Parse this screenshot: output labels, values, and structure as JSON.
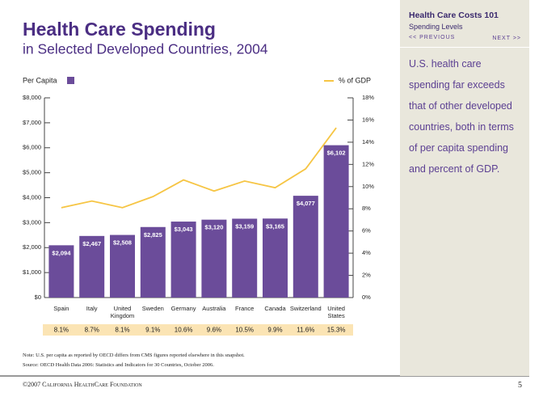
{
  "chart_data": {
    "type": "bar-line",
    "title": "Health Care Spending",
    "subtitle": "in Selected Developed Countries, 2004",
    "categories": [
      "Spain",
      "Italy",
      "United Kingdom",
      "Sweden",
      "Germany",
      "Australia",
      "France",
      "Canada",
      "Switzerland",
      "United States"
    ],
    "series": [
      {
        "name": "Per Capita",
        "color": "#6b4c9a",
        "type": "bar",
        "values": [
          2094,
          2467,
          2508,
          2825,
          3043,
          3120,
          3159,
          3165,
          4077,
          6102
        ],
        "value_labels": [
          "$2,094",
          "$2,467",
          "$2,508",
          "$2,825",
          "$3,043",
          "$3,120",
          "$3,159",
          "$3,165",
          "$4,077",
          "$6,102"
        ]
      },
      {
        "name": "% of GDP",
        "color": "#f6c544",
        "type": "line",
        "axis": "y2",
        "values": [
          8.1,
          8.7,
          8.1,
          9.1,
          10.6,
          9.6,
          10.5,
          9.9,
          11.6,
          15.3
        ],
        "value_labels": [
          "8.1%",
          "8.7%",
          "8.1%",
          "9.1%",
          "10.6%",
          "9.6%",
          "10.5%",
          "9.9%",
          "11.6%",
          "15.3%"
        ]
      }
    ],
    "ylim": [
      0,
      8000
    ],
    "yticks": [
      {
        "value": 0,
        "label": "$0"
      },
      {
        "value": 1000,
        "label": "$1,000"
      },
      {
        "value": 2000,
        "label": "$2,000"
      },
      {
        "value": 3000,
        "label": "$3,000"
      },
      {
        "value": 4000,
        "label": "$4,000"
      },
      {
        "value": 5000,
        "label": "$5,000"
      },
      {
        "value": 6000,
        "label": "$6,000"
      },
      {
        "value": 7000,
        "label": "$7,000"
      },
      {
        "value": 8000,
        "label": "$8,000"
      }
    ],
    "y2lim": [
      0,
      18
    ],
    "y2ticks": [
      {
        "value": 0,
        "label": "0%"
      },
      {
        "value": 2,
        "label": "2%"
      },
      {
        "value": 4,
        "label": "4%"
      },
      {
        "value": 6,
        "label": "6%"
      },
      {
        "value": 8,
        "label": "8%"
      },
      {
        "value": 10,
        "label": "10%"
      },
      {
        "value": 12,
        "label": "12%"
      },
      {
        "value": 14,
        "label": "14%"
      },
      {
        "value": 16,
        "label": "16%"
      },
      {
        "value": 18,
        "label": "18%"
      }
    ],
    "grid": false
  },
  "notes": [
    "Note: U.S. per capita as reported by OECD differs from CMS figures reported elsewhere in this snapshot.",
    "Source: OECD Health Data 2006: Statistics and Indicators for 30 Countries, October 2006."
  ],
  "sidebar": {
    "title": "Health Care Costs 101",
    "subtitle": "Spending Levels",
    "previous": "<< PREVIOUS",
    "next": "NEXT >>",
    "text": "U.S. health care spending far exceeds that of other developed countries, both in terms of per capita spending and percent of GDP."
  },
  "footer": {
    "copyright": "©2007 California HealthCare Foundation",
    "page": "5"
  }
}
